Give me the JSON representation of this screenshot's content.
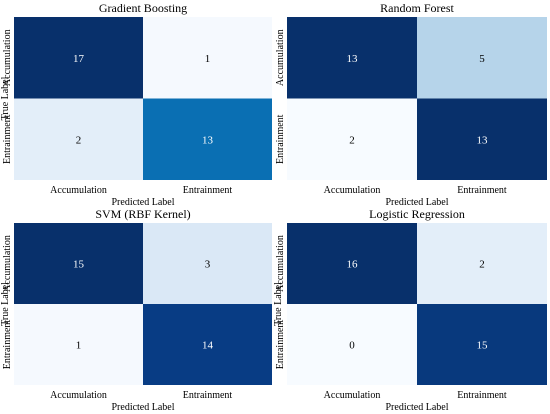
{
  "chart_data": [
    {
      "type": "heatmap",
      "title": "Gradient Boosting",
      "xlabel": "Predicted Label",
      "ylabel": "True Label",
      "x_categories": [
        "Accumulation",
        "Entrainment"
      ],
      "y_categories": [
        "Accumulation",
        "Entrainment"
      ],
      "values": [
        [
          17,
          1
        ],
        [
          2,
          13
        ]
      ],
      "colormap": "Blues",
      "colors": [
        [
          "#08306b",
          "#f5f9fe"
        ],
        [
          "#e3eef9",
          "#0a6fb3"
        ]
      ]
    },
    {
      "type": "heatmap",
      "title": "Random Forest",
      "xlabel": "Predicted Label",
      "ylabel": "",
      "x_categories": [
        "Accumulation",
        "Entrainment"
      ],
      "y_categories": [
        "Accumulation",
        "Entrainment"
      ],
      "values": [
        [
          13,
          5
        ],
        [
          2,
          13
        ]
      ],
      "colormap": "Blues",
      "colors": [
        [
          "#08306b",
          "#b6d4ea"
        ],
        [
          "#f7fbff",
          "#08306b"
        ]
      ]
    },
    {
      "type": "heatmap",
      "title": "SVM (RBF Kernel)",
      "xlabel": "Predicted Label",
      "ylabel": "True Label",
      "x_categories": [
        "Accumulation",
        "Entrainment"
      ],
      "y_categories": [
        "Accumulation",
        "Entrainment"
      ],
      "values": [
        [
          15,
          3
        ],
        [
          1,
          14
        ]
      ],
      "colormap": "Blues",
      "colors": [
        [
          "#08306b",
          "#dae8f6"
        ],
        [
          "#f5f9fe",
          "#083c84"
        ]
      ]
    },
    {
      "type": "heatmap",
      "title": "Logistic Regression",
      "xlabel": "Predicted Label",
      "ylabel": "True Label",
      "x_categories": [
        "Accumulation",
        "Entrainment"
      ],
      "y_categories": [
        "Accumulation",
        "Entrainment"
      ],
      "values": [
        [
          16,
          2
        ],
        [
          0,
          15
        ]
      ],
      "colormap": "Blues",
      "colors": [
        [
          "#08306b",
          "#e3eef9"
        ],
        [
          "#f7fbff",
          "#08397d"
        ]
      ]
    }
  ]
}
